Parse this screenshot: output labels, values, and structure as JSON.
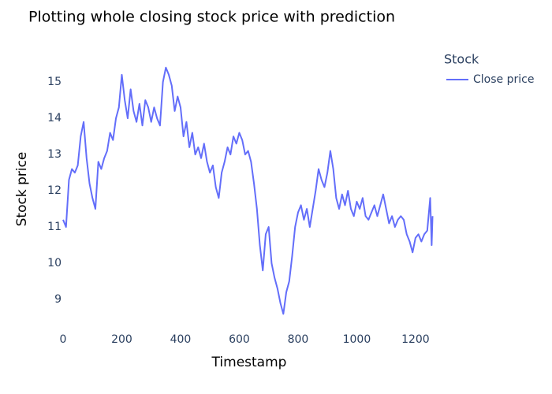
{
  "chart_data": {
    "type": "line",
    "title": "Plotting whole closing stock price with prediction",
    "x_label": "Timestamp",
    "y_label": "Stock price",
    "legend_title": "Stock",
    "legend_position": "right",
    "grid": false,
    "xlim": [
      0,
      1262
    ],
    "ylim": [
      8.5,
      15.59
    ],
    "xticks": [
      0,
      200,
      400,
      600,
      800,
      1000,
      1200
    ],
    "yticks": [
      9,
      10,
      11,
      12,
      13,
      14,
      15
    ],
    "x": [
      0,
      10,
      20,
      30,
      40,
      50,
      60,
      70,
      80,
      90,
      100,
      110,
      120,
      130,
      140,
      150,
      160,
      170,
      180,
      190,
      200,
      210,
      220,
      230,
      240,
      250,
      260,
      270,
      280,
      290,
      300,
      310,
      320,
      330,
      340,
      350,
      360,
      370,
      380,
      390,
      400,
      410,
      420,
      430,
      440,
      450,
      460,
      470,
      480,
      490,
      500,
      510,
      520,
      530,
      540,
      550,
      560,
      570,
      580,
      590,
      600,
      610,
      620,
      630,
      640,
      650,
      660,
      670,
      680,
      690,
      700,
      710,
      720,
      730,
      740,
      750,
      760,
      770,
      780,
      790,
      800,
      810,
      820,
      830,
      840,
      850,
      860,
      870,
      880,
      890,
      900,
      910,
      920,
      930,
      940,
      950,
      960,
      970,
      980,
      990,
      1000,
      1010,
      1020,
      1030,
      1040,
      1050,
      1060,
      1070,
      1080,
      1090,
      1100,
      1110,
      1120,
      1130,
      1140,
      1150,
      1160,
      1170,
      1180,
      1190,
      1200,
      1210,
      1220,
      1230,
      1240,
      1250,
      1255,
      1258
    ],
    "series": [
      {
        "name": "Close price",
        "color": "#636efa",
        "values": [
          11.2,
          11.0,
          12.3,
          12.6,
          12.5,
          12.7,
          13.5,
          13.9,
          12.9,
          12.2,
          11.8,
          11.5,
          12.8,
          12.6,
          12.9,
          13.1,
          13.6,
          13.4,
          14.0,
          14.3,
          15.2,
          14.5,
          14.0,
          14.8,
          14.2,
          13.9,
          14.4,
          13.8,
          14.5,
          14.3,
          13.9,
          14.3,
          14.0,
          13.8,
          15.0,
          15.4,
          15.2,
          14.9,
          14.2,
          14.6,
          14.3,
          13.5,
          13.9,
          13.2,
          13.6,
          13.0,
          13.2,
          12.9,
          13.3,
          12.8,
          12.5,
          12.7,
          12.1,
          11.8,
          12.5,
          12.8,
          13.2,
          13.0,
          13.5,
          13.3,
          13.6,
          13.4,
          13.0,
          13.1,
          12.8,
          12.2,
          11.5,
          10.5,
          9.8,
          10.8,
          11.0,
          10.0,
          9.6,
          9.3,
          8.9,
          8.6,
          9.2,
          9.5,
          10.2,
          11.0,
          11.4,
          11.6,
          11.2,
          11.5,
          11.0,
          11.5,
          12.0,
          12.6,
          12.3,
          12.1,
          12.5,
          13.1,
          12.6,
          11.8,
          11.5,
          11.9,
          11.6,
          12.0,
          11.5,
          11.3,
          11.7,
          11.5,
          11.8,
          11.3,
          11.2,
          11.4,
          11.6,
          11.3,
          11.6,
          11.9,
          11.5,
          11.1,
          11.3,
          11.0,
          11.2,
          11.3,
          11.2,
          10.8,
          10.6,
          10.3,
          10.7,
          10.8,
          10.6,
          10.8,
          10.9,
          11.8,
          10.5,
          11.3
        ]
      }
    ]
  }
}
